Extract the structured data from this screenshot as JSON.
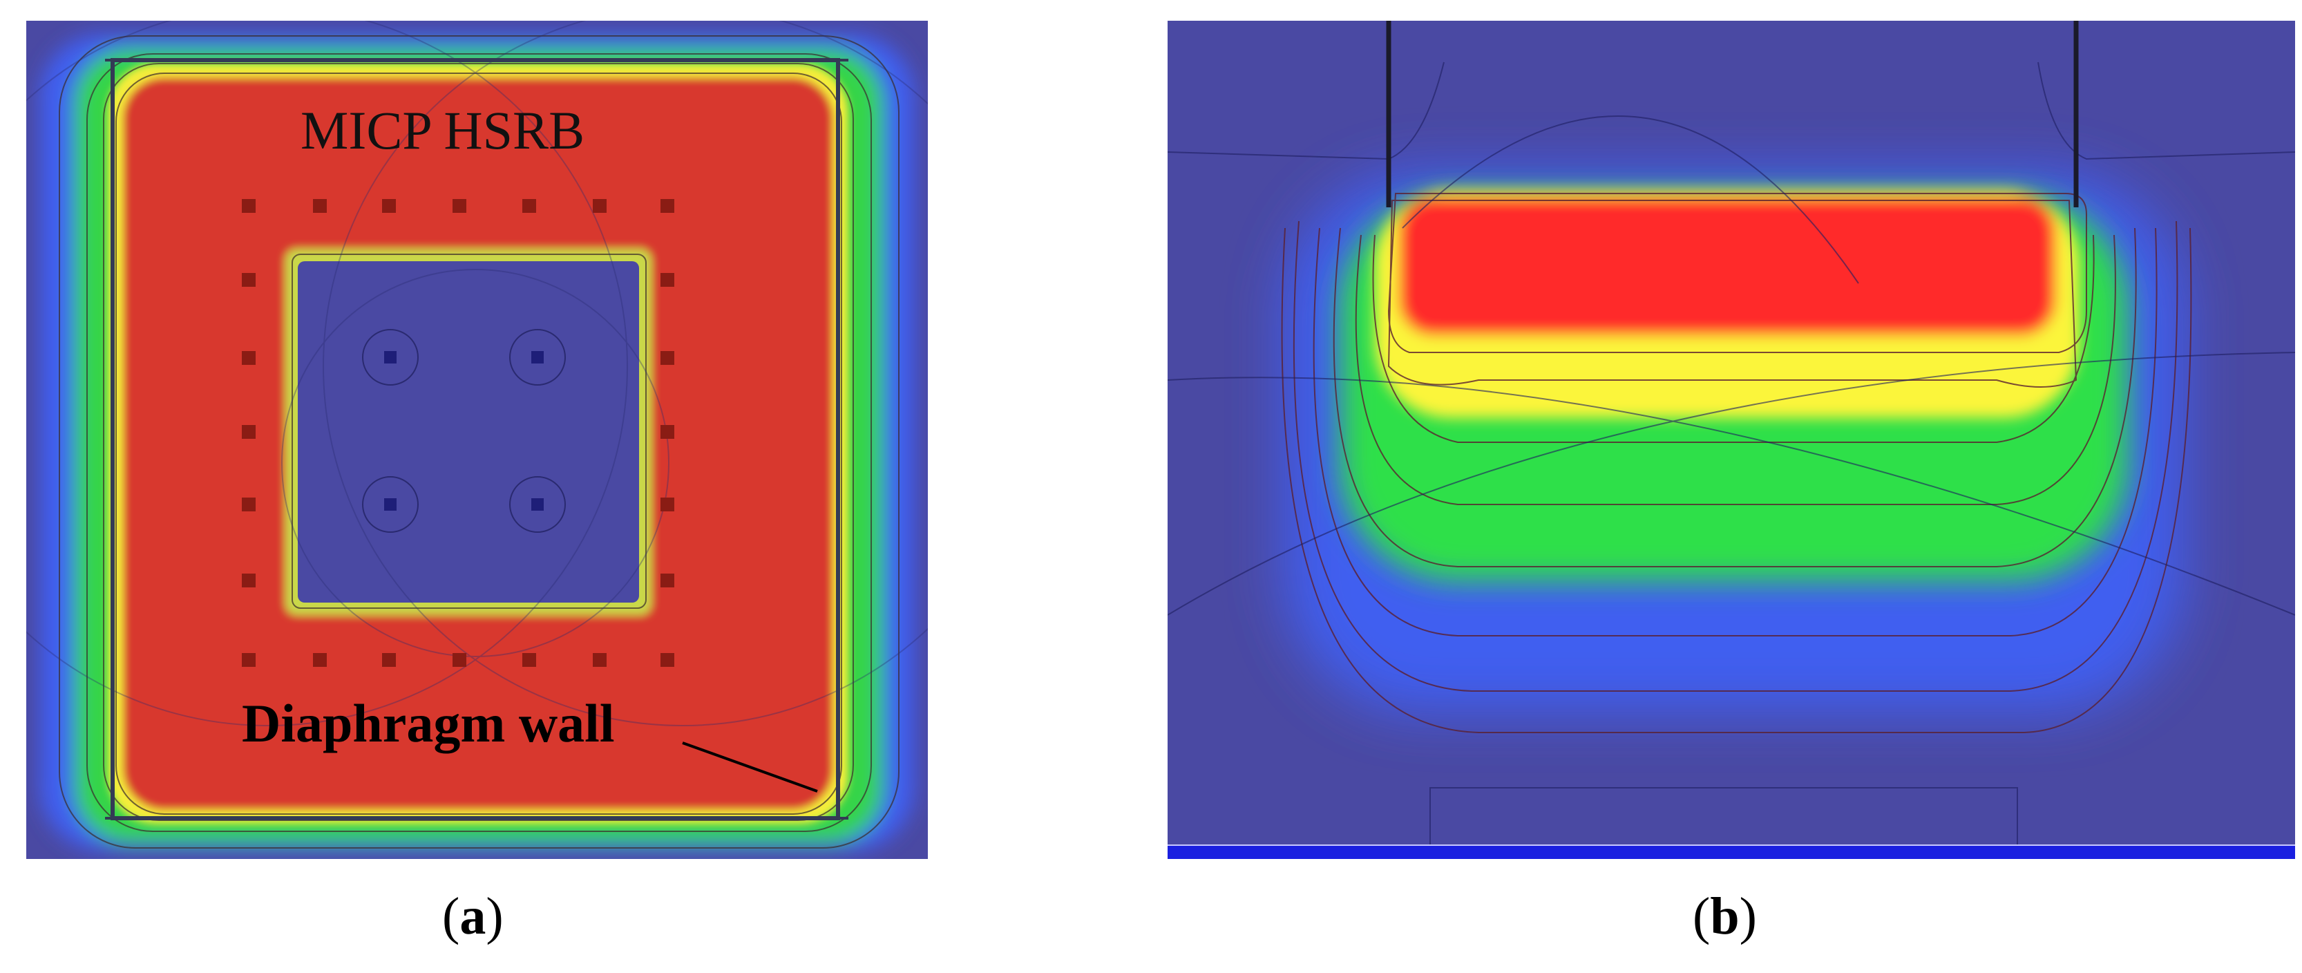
{
  "panel_a": {
    "title_label": "MICP HSRB",
    "wall_label": "Diaphragm wall",
    "caption_letter": "a",
    "colors": {
      "background": "#4a49a3",
      "high": "#e0302a",
      "mid": "#f5ee3a",
      "low": "#36d44a"
    }
  },
  "panel_b": {
    "caption_letter": "b",
    "colors": {
      "background": "#4a49a3",
      "high": "#ff2a2a",
      "mid": "#fbf53a",
      "low": "#2fe04a",
      "axis_bar": "#1a1fe0"
    }
  },
  "caption_open": "(",
  "caption_close": ")"
}
